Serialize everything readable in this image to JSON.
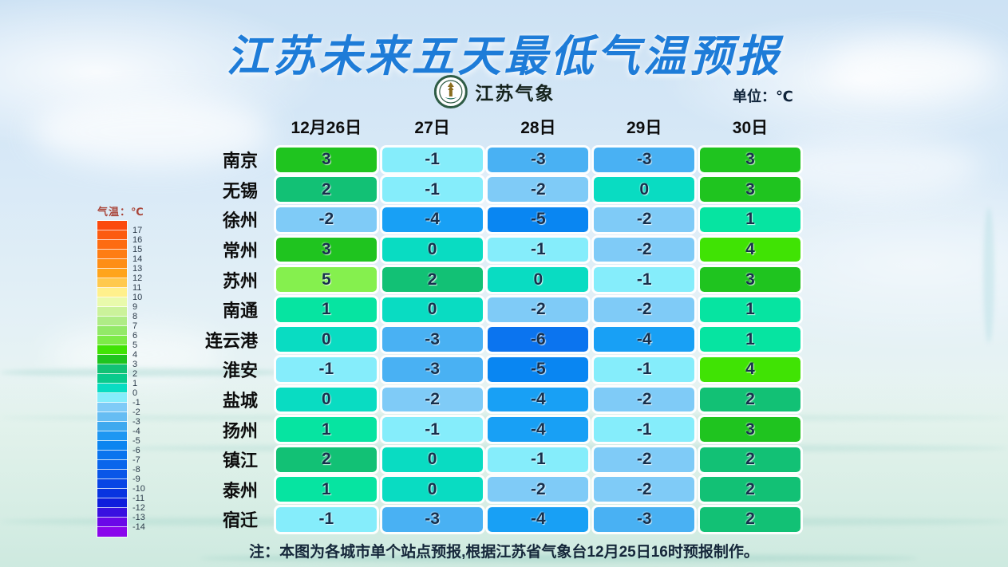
{
  "header": {
    "title": "江苏未来五天最低气温预报",
    "title_color": "#1e7cd8",
    "logo_text": "江苏气象",
    "unit_label": "单位：℃"
  },
  "chart_data": {
    "type": "heatmap",
    "title": "江苏未来五天最低气温预报",
    "unit": "℃",
    "columns": [
      "12月26日",
      "27日",
      "28日",
      "29日",
      "30日"
    ],
    "rows": [
      {
        "city": "南京",
        "values": [
          3,
          -1,
          -3,
          -3,
          3
        ]
      },
      {
        "city": "无锡",
        "values": [
          2,
          -1,
          -2,
          0,
          3
        ]
      },
      {
        "city": "徐州",
        "values": [
          -2,
          -4,
          -5,
          -2,
          1
        ]
      },
      {
        "city": "常州",
        "values": [
          3,
          0,
          -1,
          -2,
          4
        ]
      },
      {
        "city": "苏州",
        "values": [
          5,
          2,
          0,
          -1,
          3
        ]
      },
      {
        "city": "南通",
        "values": [
          1,
          0,
          -2,
          -2,
          1
        ]
      },
      {
        "city": "连云港",
        "values": [
          0,
          -3,
          -6,
          -4,
          1
        ]
      },
      {
        "city": "淮安",
        "values": [
          -1,
          -3,
          -5,
          -1,
          4
        ]
      },
      {
        "city": "盐城",
        "values": [
          0,
          -2,
          -4,
          -2,
          2
        ]
      },
      {
        "city": "扬州",
        "values": [
          1,
          -1,
          -4,
          -1,
          3
        ]
      },
      {
        "city": "镇江",
        "values": [
          2,
          0,
          -1,
          -2,
          2
        ]
      },
      {
        "city": "泰州",
        "values": [
          1,
          0,
          -2,
          -2,
          2
        ]
      },
      {
        "city": "宿迁",
        "values": [
          -1,
          -3,
          -4,
          -3,
          2
        ]
      }
    ],
    "value_colors": {
      "5": "#85f04e",
      "4": "#40e304",
      "3": "#1fc41f",
      "2": "#12c175",
      "1": "#06e4a1",
      "0": "#09dcc2",
      "-1": "#85edfb",
      "-2": "#7fcbf7",
      "-3": "#49b1f3",
      "-4": "#18a0f5",
      "-5": "#0986f2",
      "-6": "#0b74ef"
    },
    "legend": {
      "title": "气温：℃",
      "tick_labels": [
        "17",
        "16",
        "15",
        "14",
        "13",
        "12",
        "11",
        "10",
        "9",
        "8",
        "7",
        "6",
        "5",
        "4",
        "3",
        "2",
        "1",
        "0",
        "-1",
        "-2",
        "-3",
        "-4",
        "-5",
        "-6",
        "-7",
        "-8",
        "-9",
        "-10",
        "-11",
        "-12",
        "-13",
        "-14"
      ],
      "colors": [
        "#fb4a0e",
        "#fc5b10",
        "#fd6c12",
        "#fe7d14",
        "#fe8e16",
        "#ffa41c",
        "#ffc94e",
        "#fff08c",
        "#e9faac",
        "#cbf29b",
        "#afec86",
        "#93e968",
        "#7deb47",
        "#40e304",
        "#1fc41f",
        "#12c175",
        "#0aca8c",
        "#09dcc2",
        "#85edfb",
        "#7fcbf7",
        "#66bdf3",
        "#3fa9ef",
        "#1e97f2",
        "#0d85f0",
        "#0a74ee",
        "#0a66ec",
        "#0956e8",
        "#0845e5",
        "#0834e0",
        "#0e1edc",
        "#3910e0",
        "#6a08e8",
        "#8a06ec"
      ]
    }
  },
  "footer": {
    "note": "注：本图为各城市单个站点预报,根据江苏省气象台12月25日16时预报制作。"
  }
}
